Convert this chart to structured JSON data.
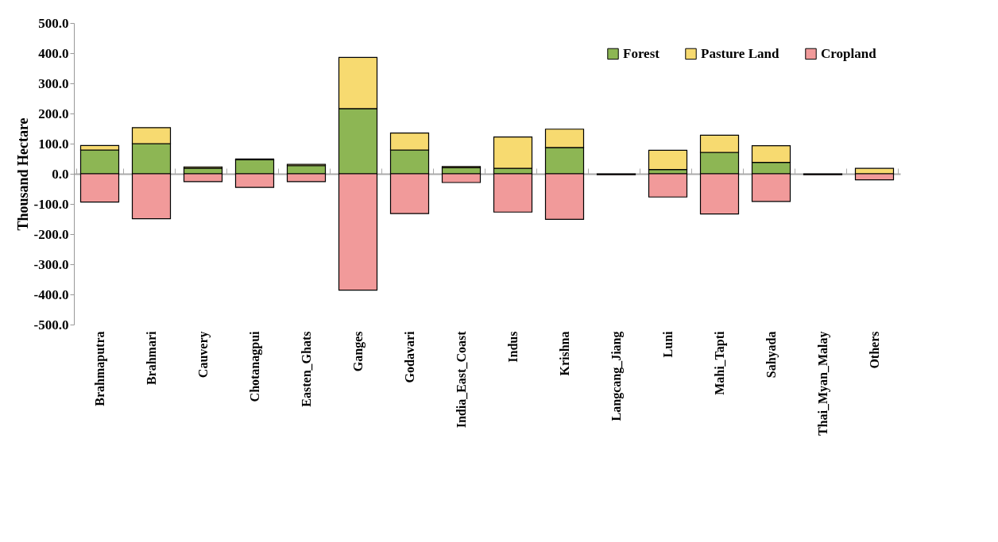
{
  "chart_data": {
    "type": "bar",
    "stacked": true,
    "ylabel": "Thousand Hectare",
    "categories": [
      "Brahmaputra",
      "Brahmari",
      "Cauvery",
      "Chotanagpui",
      "Easten_Ghats",
      "Ganges",
      "Godavari",
      "India_East_Coast",
      "Indus",
      "Krishna",
      "Langcang_Jiang",
      "Luni",
      "Mahi_Tapti",
      "Sahyada",
      "Thai_Myan_Malay",
      "Others"
    ],
    "series": [
      {
        "name": "Forest",
        "color": "#8db654",
        "values": [
          79,
          100,
          19,
          46,
          27,
          216,
          79,
          20,
          18,
          87,
          null,
          14,
          71,
          38,
          null,
          null
        ]
      },
      {
        "name": "Pasture Land",
        "color": "#f7da70",
        "values": [
          15,
          53,
          4,
          3,
          4,
          170,
          56,
          4,
          104,
          61,
          null,
          64,
          57,
          55,
          null,
          18
        ]
      },
      {
        "name": "Cropland",
        "color": "#f19a9a",
        "values": [
          -94,
          -149,
          -26,
          -45,
          -26,
          -386,
          -132,
          -29,
          -127,
          -151,
          -3,
          -77,
          -133,
          -92,
          -3,
          -20
        ]
      }
    ],
    "ylim": [
      -500,
      500
    ],
    "yticks": [
      {
        "value": -500,
        "label": "-500.0"
      },
      {
        "value": -400,
        "label": "-400.0"
      },
      {
        "value": -300,
        "label": "-300.0"
      },
      {
        "value": -200,
        "label": "-200.0"
      },
      {
        "value": -100,
        "label": "-100.0"
      },
      {
        "value": 0,
        "label": "0.0"
      },
      {
        "value": 100,
        "label": "100.0"
      },
      {
        "value": 200,
        "label": "200.0"
      },
      {
        "value": 300,
        "label": "300.0"
      },
      {
        "value": 400,
        "label": "400.0"
      },
      {
        "value": 500,
        "label": "500.0"
      }
    ],
    "legend": "top right"
  }
}
